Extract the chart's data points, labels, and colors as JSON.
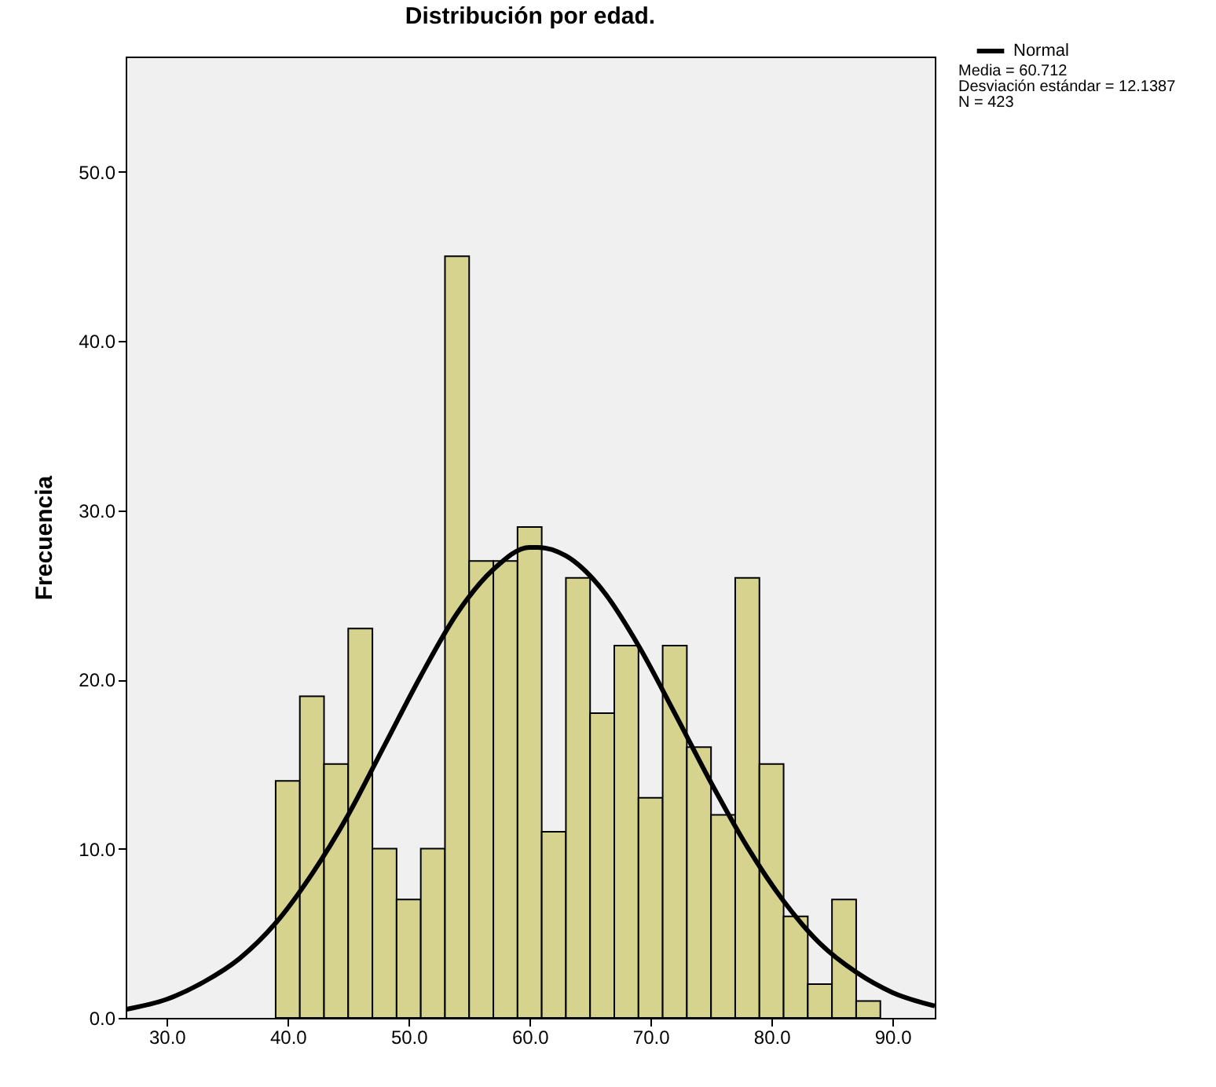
{
  "chart_data": {
    "type": "histogram",
    "title": "Distribución por edad.",
    "ylabel": "Frecuencia",
    "bins": [
      39,
      41,
      43,
      45,
      47,
      49,
      51,
      53,
      55,
      57,
      59,
      61,
      63,
      65,
      67,
      69,
      71,
      73,
      75,
      77,
      79,
      81,
      83,
      85,
      87,
      89
    ],
    "values": [
      14,
      19,
      15,
      23,
      10,
      7,
      10,
      45,
      27,
      27,
      29,
      11,
      26,
      18,
      22,
      13,
      22,
      16,
      12,
      26,
      15,
      6,
      2,
      7,
      1
    ],
    "color": "#d6d38e",
    "series": [
      {
        "type": "line",
        "name": "Normal",
        "color": "#000000",
        "x": [
          26.6,
          30,
          33,
          36,
          39,
          42,
          45,
          48,
          51,
          54,
          57,
          60,
          60.7,
          63,
          66,
          69,
          72,
          75,
          78,
          81,
          84,
          87,
          90,
          93.5
        ],
        "values": [
          0.5,
          1.1,
          2.1,
          3.5,
          5.6,
          8.5,
          12.0,
          16.1,
          20.2,
          23.9,
          26.5,
          27.8,
          27.8,
          27.3,
          25.3,
          22.0,
          18.0,
          13.9,
          10.1,
          6.9,
          4.4,
          2.7,
          1.5,
          0.7
        ]
      }
    ],
    "xlim": [
      26.6,
      93.5
    ],
    "xticks": [
      {
        "value": 30,
        "label": "30.0"
      },
      {
        "value": 40,
        "label": "40.0"
      },
      {
        "value": 50,
        "label": "50.0"
      },
      {
        "value": 60,
        "label": "60.0"
      },
      {
        "value": 70,
        "label": "70.0"
      },
      {
        "value": 80,
        "label": "80.0"
      },
      {
        "value": 90,
        "label": "90.0"
      }
    ],
    "ylim": [
      0,
      56.8
    ],
    "yticks": [
      {
        "value": 0,
        "label": "0.0"
      },
      {
        "value": 10,
        "label": "10.0"
      },
      {
        "value": 20,
        "label": "20.0"
      },
      {
        "value": 30,
        "label": "30.0"
      },
      {
        "value": 40,
        "label": "40.0"
      },
      {
        "value": 50,
        "label": "50.0"
      }
    ],
    "annotations": [
      "Media = 60.712",
      "Desviación estándar = 12.1387",
      "N = 423"
    ],
    "legend": "top right",
    "grid": false
  }
}
